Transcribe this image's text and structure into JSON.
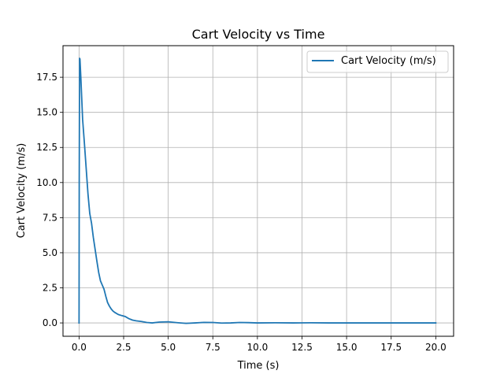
{
  "chart_data": {
    "type": "line",
    "title": "Cart Velocity vs Time",
    "xlabel": "Time (s)",
    "ylabel": "Cart Velocity (m/s)",
    "xlim": [
      -0.9,
      21.0
    ],
    "ylim": [
      -0.95,
      19.75
    ],
    "x_ticks": [
      0.0,
      2.5,
      5.0,
      7.5,
      10.0,
      12.5,
      15.0,
      17.5,
      20.0
    ],
    "x_tick_labels": [
      "0.0",
      "2.5",
      "5.0",
      "7.5",
      "10.0",
      "12.5",
      "15.0",
      "17.5",
      "20.0"
    ],
    "y_ticks": [
      0.0,
      2.5,
      5.0,
      7.5,
      10.0,
      12.5,
      15.0,
      17.5
    ],
    "y_tick_labels": [
      "0.0",
      "2.5",
      "5.0",
      "7.5",
      "10.0",
      "12.5",
      "15.0",
      "17.5"
    ],
    "grid": true,
    "legend_position": "top-right",
    "series": [
      {
        "name": "Cart Velocity (m/s)",
        "color": "#1f77b4",
        "x": [
          0.0,
          0.01,
          0.03,
          0.05,
          0.1,
          0.2,
          0.3,
          0.4,
          0.5,
          0.6,
          0.7,
          0.8,
          1.0,
          1.1,
          1.2,
          1.3,
          1.4,
          1.5,
          1.6,
          1.7,
          1.8,
          1.9,
          2.0,
          2.2,
          2.4,
          2.6,
          2.8,
          3.0,
          3.2,
          3.5,
          3.8,
          4.1,
          4.5,
          5.0,
          5.5,
          6.0,
          6.5,
          7.0,
          7.5,
          8.0,
          8.5,
          9.0,
          9.5,
          10.0,
          11.0,
          12.0,
          13.0,
          14.0,
          15.0,
          16.0,
          17.0,
          18.0,
          19.0,
          20.0
        ],
        "y": [
          0.0,
          10.0,
          18.85,
          18.8,
          17.5,
          14.5,
          12.8,
          11.0,
          9.2,
          7.8,
          7.1,
          6.1,
          4.4,
          3.6,
          3.0,
          2.7,
          2.4,
          1.9,
          1.45,
          1.2,
          1.0,
          0.85,
          0.75,
          0.6,
          0.52,
          0.45,
          0.3,
          0.2,
          0.15,
          0.1,
          0.03,
          0.0,
          0.06,
          0.08,
          0.02,
          -0.03,
          0.0,
          0.04,
          0.03,
          -0.01,
          0.0,
          0.03,
          0.02,
          0.0,
          0.01,
          0.0,
          0.01,
          0.0,
          0.0,
          0.0,
          0.0,
          0.0,
          0.0,
          0.0
        ]
      }
    ]
  }
}
